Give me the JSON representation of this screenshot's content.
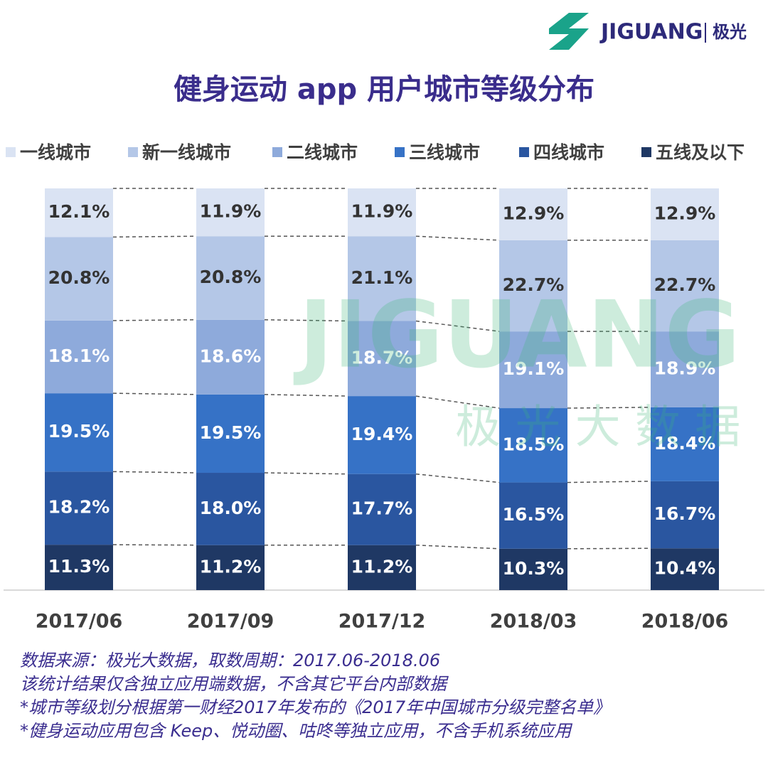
{
  "logo": {
    "name": "JIGUANG",
    "cn": "极光"
  },
  "watermark": {
    "name": "JIGUANG",
    "cn": "极 光 大 数 据"
  },
  "chart_data": {
    "type": "bar",
    "stacked": true,
    "title": "健身运动 app 用户城市等级分布",
    "categories": [
      "2017/06",
      "2017/09",
      "2017/12",
      "2018/03",
      "2018/06"
    ],
    "series": [
      {
        "name": "一线城市",
        "color": "#dae3f3",
        "values": [
          12.1,
          11.9,
          11.9,
          12.9,
          12.9
        ],
        "value_labels": [
          "12.1%",
          "11.9%",
          "11.9%",
          "12.9%",
          "12.9%"
        ]
      },
      {
        "name": "新一线城市",
        "color": "#b4c7e7",
        "values": [
          20.8,
          20.8,
          21.1,
          22.7,
          22.7
        ],
        "value_labels": [
          "20.8%",
          "20.8%",
          "21.1%",
          "22.7%",
          "22.7%"
        ]
      },
      {
        "name": "二线城市",
        "color": "#8eaadb",
        "values": [
          18.1,
          18.6,
          18.7,
          19.1,
          18.9
        ],
        "value_labels": [
          "18.1%",
          "18.6%",
          "18.7%",
          "19.1%",
          "18.9%"
        ]
      },
      {
        "name": "三线城市",
        "color": "#3672c6",
        "values": [
          19.5,
          19.5,
          19.4,
          18.5,
          18.4
        ],
        "value_labels": [
          "19.5%",
          "19.5%",
          "19.4%",
          "18.5%",
          "18.4%"
        ]
      },
      {
        "name": "四线城市",
        "color": "#2a56a0",
        "values": [
          18.2,
          18.0,
          17.7,
          16.5,
          16.7
        ],
        "value_labels": [
          "18.2%",
          "18.0%",
          "17.7%",
          "16.5%",
          "16.7%"
        ]
      },
      {
        "name": "五线及以下",
        "color": "#1f3864",
        "values": [
          11.3,
          11.2,
          11.2,
          10.3,
          10.4
        ],
        "value_labels": [
          "11.3%",
          "11.2%",
          "11.2%",
          "10.3%",
          "10.4%"
        ]
      }
    ],
    "notes": [
      "数据来源：极光大数据，取数周期：2017.06-2018.06",
      "该统计结果仅含独立应用端数据，不含其它平台内部数据",
      "*城市等级划分根据第一财经2017年发布的《2017年中国城市分级完整名单》",
      "*健身运动应用包含 Keep、悦动圈、咕咚等独立应用，不含手机系统应用"
    ]
  }
}
